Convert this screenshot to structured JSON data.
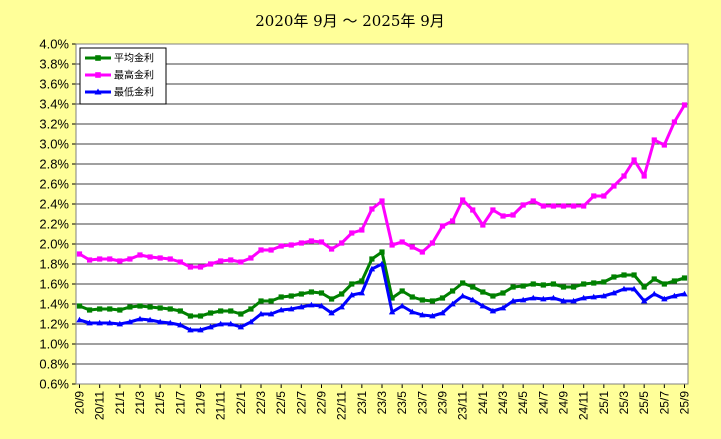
{
  "chart_data": {
    "type": "line",
    "title": "2020年 9月 ～ 2025年 9月",
    "xlabel": "",
    "ylabel": "",
    "ylim": [
      0.6,
      4.0
    ],
    "yticks": [
      "0.6%",
      "0.8%",
      "1.0%",
      "1.2%",
      "1.4%",
      "1.6%",
      "1.8%",
      "2.0%",
      "2.2%",
      "2.4%",
      "2.6%",
      "2.8%",
      "3.0%",
      "3.2%",
      "3.4%",
      "3.6%",
      "3.8%",
      "4.0%"
    ],
    "x": [
      "20/9",
      "20/10",
      "20/11",
      "20/12",
      "21/1",
      "21/2",
      "21/3",
      "21/4",
      "21/5",
      "21/6",
      "21/7",
      "21/8",
      "21/9",
      "21/10",
      "21/11",
      "21/12",
      "22/1",
      "22/2",
      "22/3",
      "22/4",
      "22/5",
      "22/6",
      "22/7",
      "22/8",
      "22/9",
      "22/10",
      "22/11",
      "22/12",
      "23/1",
      "23/2",
      "23/3",
      "23/4",
      "23/5",
      "23/6",
      "23/7",
      "23/8",
      "23/9",
      "23/10",
      "23/11",
      "23/12",
      "24/1",
      "24/2",
      "24/3",
      "24/4",
      "24/5",
      "24/6",
      "24/7",
      "24/8",
      "24/9",
      "24/10",
      "24/11",
      "24/12",
      "25/1",
      "25/2",
      "25/3",
      "25/4",
      "25/5",
      "25/6",
      "25/7",
      "25/8",
      "25/9"
    ],
    "xticks_shown": [
      "20/9",
      "20/11",
      "21/1",
      "21/3",
      "21/5",
      "21/7",
      "21/9",
      "21/11",
      "22/1",
      "22/3",
      "22/5",
      "22/7",
      "22/9",
      "22/11",
      "23/1",
      "23/3",
      "23/5",
      "23/7",
      "23/9",
      "23/11",
      "24/1",
      "24/3",
      "24/5",
      "24/7",
      "24/9",
      "24/11",
      "25/1",
      "25/3",
      "25/5",
      "25/7",
      "25/9"
    ],
    "grid": true,
    "legend_position": "top-left",
    "series": [
      {
        "name": "平均金利",
        "color": "#008000",
        "marker": "square",
        "values": [
          1.38,
          1.34,
          1.35,
          1.35,
          1.34,
          1.37,
          1.38,
          1.37,
          1.36,
          1.35,
          1.33,
          1.28,
          1.28,
          1.31,
          1.33,
          1.33,
          1.3,
          1.35,
          1.43,
          1.43,
          1.47,
          1.48,
          1.5,
          1.52,
          1.51,
          1.45,
          1.5,
          1.6,
          1.63,
          1.85,
          1.92,
          1.46,
          1.53,
          1.47,
          1.44,
          1.43,
          1.46,
          1.53,
          1.61,
          1.57,
          1.52,
          1.48,
          1.51,
          1.57,
          1.58,
          1.6,
          1.59,
          1.6,
          1.57,
          1.57,
          1.6,
          1.61,
          1.62,
          1.67,
          1.69,
          1.69,
          1.57,
          1.65,
          1.6,
          1.63,
          1.66
        ]
      },
      {
        "name": "最高金利",
        "color": "#ff00ff",
        "marker": "square",
        "values": [
          1.9,
          1.84,
          1.85,
          1.85,
          1.83,
          1.85,
          1.89,
          1.87,
          1.86,
          1.85,
          1.82,
          1.77,
          1.77,
          1.8,
          1.83,
          1.84,
          1.82,
          1.86,
          1.94,
          1.94,
          1.98,
          1.99,
          2.01,
          2.03,
          2.02,
          1.95,
          2.01,
          2.11,
          2.14,
          2.35,
          2.43,
          1.99,
          2.02,
          1.97,
          1.92,
          2.01,
          2.18,
          2.23,
          2.44,
          2.34,
          2.19,
          2.34,
          2.28,
          2.29,
          2.39,
          2.43,
          2.38,
          2.38,
          2.38,
          2.38,
          2.38,
          2.48,
          2.48,
          2.58,
          2.68,
          2.84,
          2.68,
          3.04,
          2.99,
          3.22,
          3.39
        ]
      },
      {
        "name": "最低金利",
        "color": "#0000ff",
        "marker": "triangle",
        "values": [
          1.24,
          1.21,
          1.21,
          1.21,
          1.2,
          1.22,
          1.25,
          1.24,
          1.22,
          1.21,
          1.19,
          1.14,
          1.14,
          1.17,
          1.2,
          1.2,
          1.17,
          1.22,
          1.3,
          1.3,
          1.34,
          1.35,
          1.37,
          1.39,
          1.38,
          1.31,
          1.37,
          1.49,
          1.51,
          1.75,
          1.8,
          1.32,
          1.38,
          1.32,
          1.29,
          1.28,
          1.31,
          1.4,
          1.48,
          1.44,
          1.38,
          1.33,
          1.36,
          1.43,
          1.44,
          1.46,
          1.45,
          1.46,
          1.43,
          1.43,
          1.46,
          1.47,
          1.48,
          1.51,
          1.55,
          1.55,
          1.43,
          1.5,
          1.45,
          1.48,
          1.5
        ]
      }
    ]
  }
}
